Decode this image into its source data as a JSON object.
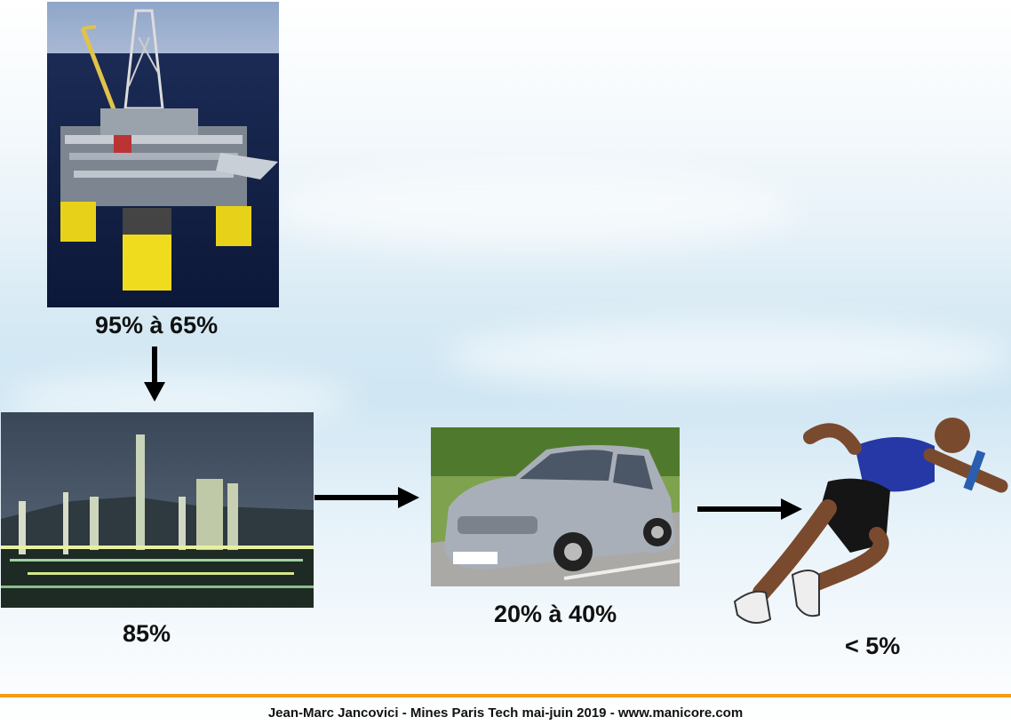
{
  "stages": [
    {
      "id": "oil-platform",
      "label": "95% à 65%"
    },
    {
      "id": "refinery",
      "label": "85%"
    },
    {
      "id": "car",
      "label": "20% à 40%"
    },
    {
      "id": "runner",
      "label": "< 5%"
    }
  ],
  "footer": {
    "text": "Jean-Marc Jancovici - Mines Paris Tech mai-juin 2019 - www.manicore.com"
  },
  "colors": {
    "accent_line": "#f39c12",
    "arrow": "#000000"
  }
}
